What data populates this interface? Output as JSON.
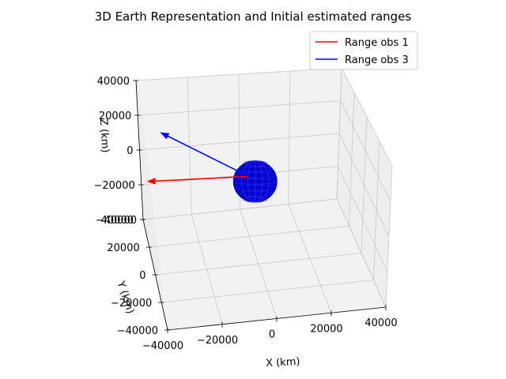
{
  "chart_data": {
    "type": "line",
    "title": "3D Earth Representation and Initial estimated ranges",
    "xlabel": "X (km)",
    "ylabel": "Y (km)",
    "zlabel": "Z (km)",
    "xlim": [
      -40000,
      40000
    ],
    "ylim": [
      -40000,
      40000
    ],
    "zlim": [
      -40000,
      40000
    ],
    "x_ticks": [
      -40000,
      -20000,
      0,
      20000,
      40000
    ],
    "y_ticks": [
      -40000,
      -20000,
      0,
      20000,
      40000
    ],
    "z_ticks": [
      -40000,
      -20000,
      0,
      20000,
      40000
    ],
    "x_tick_labels": [
      "−40000",
      "−20000",
      "0",
      "20000",
      "40000"
    ],
    "y_tick_labels": [
      "−40000",
      "−20000",
      "0",
      "20000",
      "40000"
    ],
    "z_tick_labels": [
      "−40000",
      "−20000",
      "0",
      "20000",
      "40000"
    ],
    "grid": true,
    "legend_position": "top-right",
    "earth": {
      "center": [
        0,
        0,
        0
      ],
      "radius_km": 6378,
      "color": "#0000cc"
    },
    "series": [
      {
        "name": "Range obs 1",
        "color": "#ff0000",
        "start": [
          -2000,
          2500,
          1200
        ],
        "end": [
          -38000,
          30000,
          -13000
        ]
      },
      {
        "name": "Range obs 3",
        "color": "#0000ff",
        "start": [
          -2000,
          2500,
          1200
        ],
        "end": [
          -32000,
          24000,
          14000
        ]
      }
    ]
  }
}
